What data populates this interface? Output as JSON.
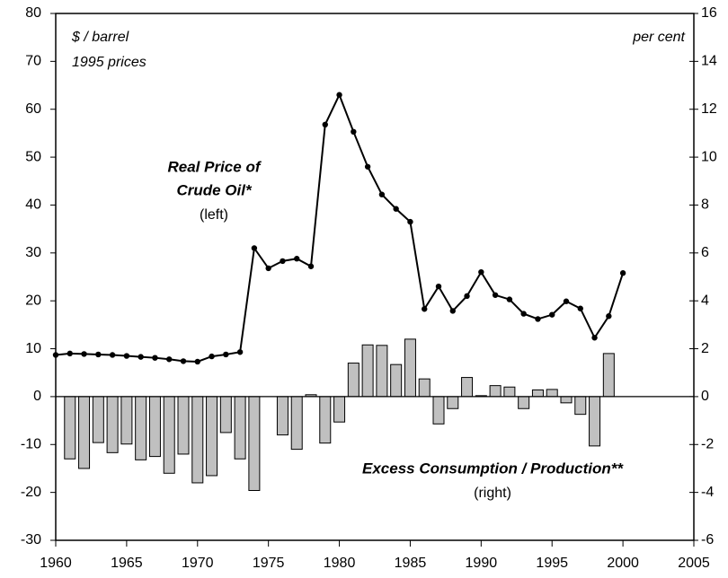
{
  "chart_data": {
    "type": "line-bar",
    "x": [
      1960,
      1961,
      1962,
      1963,
      1964,
      1965,
      1966,
      1967,
      1968,
      1969,
      1970,
      1971,
      1972,
      1973,
      1974,
      1975,
      1976,
      1977,
      1978,
      1979,
      1980,
      1981,
      1982,
      1983,
      1984,
      1985,
      1986,
      1987,
      1988,
      1989,
      1990,
      1991,
      1992,
      1993,
      1994,
      1995,
      1996,
      1997,
      1998,
      1999,
      2000
    ],
    "series": [
      {
        "type": "line",
        "color": "#000000",
        "values": [
          8.7,
          9.0,
          8.9,
          8.8,
          8.7,
          8.5,
          8.3,
          8.1,
          7.8,
          7.4,
          7.3,
          8.4,
          8.8,
          9.3,
          31,
          26.8,
          28.3,
          28.8,
          27.2,
          56.8,
          63,
          55.3,
          48,
          42.2,
          39.2,
          36.5,
          18.3,
          23,
          17.9,
          21,
          26,
          21.2,
          20.3,
          17.3,
          16.2,
          17.1,
          19.9,
          18.4,
          12.3,
          16.8,
          25.8
        ]
      },
      {
        "type": "bar",
        "axis": "y2",
        "color": "#c0c0c0",
        "values": [
          null,
          -2.6,
          -3.0,
          -1.92,
          -2.34,
          -1.98,
          -2.64,
          -2.5,
          -3.2,
          -2.4,
          -3.6,
          -3.3,
          -1.5,
          -2.6,
          -3.92,
          0,
          -1.6,
          -2.2,
          0.08,
          -1.94,
          -1.06,
          1.4,
          2.16,
          2.14,
          1.34,
          2.4,
          0.74,
          -1.14,
          -0.5,
          0.8,
          0.04,
          0.46,
          0.4,
          -0.5,
          0.28,
          0.3,
          -0.26,
          -0.74,
          -2.06,
          1.8,
          null
        ]
      }
    ],
    "xlim": [
      1960,
      2005
    ],
    "xticks": [
      1960,
      1965,
      1970,
      1975,
      1980,
      1985,
      1990,
      1995,
      2000,
      2005
    ],
    "ylim": [
      -30,
      80
    ],
    "yticks": [
      -30,
      -20,
      -10,
      0,
      10,
      20,
      30,
      40,
      50,
      60,
      70,
      80
    ],
    "y2lim": [
      -6,
      16
    ],
    "y2ticks": [
      -6,
      -4,
      -2,
      0,
      2,
      4,
      6,
      8,
      10,
      12,
      14,
      16
    ],
    "annotations": [
      "$ / barrel",
      "1995 prices",
      "per cent",
      "Real Price of",
      "Crude Oil*",
      "(left)",
      "Excess Consumption / Production**",
      "(right)"
    ]
  }
}
